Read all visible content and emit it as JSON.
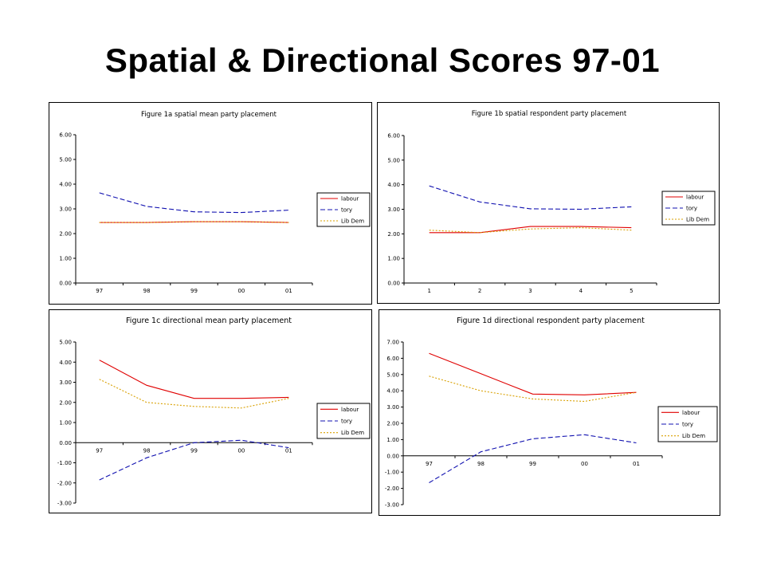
{
  "page": {
    "title": "Spatial & Directional Scores 97-01"
  },
  "colors": {
    "labour": "#e00000",
    "tory": "#1010b0",
    "libdem": "#d9a000"
  },
  "chart_data": [
    {
      "type": "line",
      "title": "Figure 1a spatial mean party placement",
      "categories": [
        "97",
        "98",
        "99",
        "00",
        "01"
      ],
      "ylim": [
        0,
        6
      ],
      "yticks": [
        "0.00",
        "1.00",
        "2.00",
        "3.00",
        "4.00",
        "5.00",
        "6.00"
      ],
      "grid": false,
      "legend": "right",
      "series": [
        {
          "name": "labour",
          "style": "solid",
          "values": [
            2.45,
            2.45,
            2.48,
            2.48,
            2.45
          ]
        },
        {
          "name": "tory",
          "style": "dashed",
          "values": [
            3.65,
            3.1,
            2.88,
            2.85,
            2.95
          ]
        },
        {
          "name": "Lib Dem",
          "style": "dotted",
          "values": [
            2.45,
            2.45,
            2.48,
            2.48,
            2.45
          ]
        }
      ]
    },
    {
      "type": "line",
      "title": "Figure 1b spatial respondent party placement",
      "categories": [
        "1",
        "2",
        "3",
        "4",
        "5"
      ],
      "ylim": [
        0,
        6
      ],
      "yticks": [
        "0.00",
        "1.00",
        "2.00",
        "3.00",
        "4.00",
        "5.00",
        "6.00"
      ],
      "grid": false,
      "legend": "right",
      "series": [
        {
          "name": "labour",
          "style": "solid",
          "values": [
            2.05,
            2.05,
            2.3,
            2.3,
            2.25
          ]
        },
        {
          "name": "tory",
          "style": "dashed",
          "values": [
            3.95,
            3.3,
            3.02,
            3.0,
            3.1
          ]
        },
        {
          "name": "Lib Dem",
          "style": "dotted",
          "values": [
            2.15,
            2.05,
            2.2,
            2.25,
            2.15
          ]
        }
      ]
    },
    {
      "type": "line",
      "title": "Figure 1c directional mean party placement",
      "categories": [
        "97",
        "98",
        "99",
        "00",
        "01"
      ],
      "ylim": [
        -3,
        5
      ],
      "yticks": [
        "-3.00",
        "-2.00",
        "-1.00",
        "0.00",
        "1.00",
        "2.00",
        "3.00",
        "4.00",
        "5.00"
      ],
      "grid": false,
      "legend": "right",
      "series": [
        {
          "name": "labour",
          "style": "solid",
          "values": [
            4.1,
            2.85,
            2.2,
            2.2,
            2.25
          ]
        },
        {
          "name": "tory",
          "style": "dashed",
          "values": [
            -1.85,
            -0.75,
            0.0,
            0.12,
            -0.25
          ]
        },
        {
          "name": "Lib Dem",
          "style": "dotted",
          "values": [
            3.15,
            2.0,
            1.8,
            1.72,
            2.2
          ]
        }
      ]
    },
    {
      "type": "line",
      "title": "Figure 1d directional respondent party placement",
      "categories": [
        "97",
        "98",
        "99",
        "00",
        "01"
      ],
      "ylim": [
        -3,
        7
      ],
      "yticks": [
        "-3.00",
        "-2.00",
        "-1.00",
        "0.00",
        "1.00",
        "2.00",
        "3.00",
        "4.00",
        "5.00",
        "6.00",
        "7.00"
      ],
      "grid": false,
      "legend": "right",
      "series": [
        {
          "name": "labour",
          "style": "solid",
          "values": [
            6.3,
            5.05,
            3.8,
            3.75,
            3.9
          ]
        },
        {
          "name": "tory",
          "style": "dashed",
          "values": [
            -1.65,
            0.25,
            1.05,
            1.3,
            0.8
          ]
        },
        {
          "name": "Lib Dem",
          "style": "dotted",
          "values": [
            4.9,
            4.0,
            3.5,
            3.35,
            3.9
          ]
        }
      ]
    }
  ]
}
